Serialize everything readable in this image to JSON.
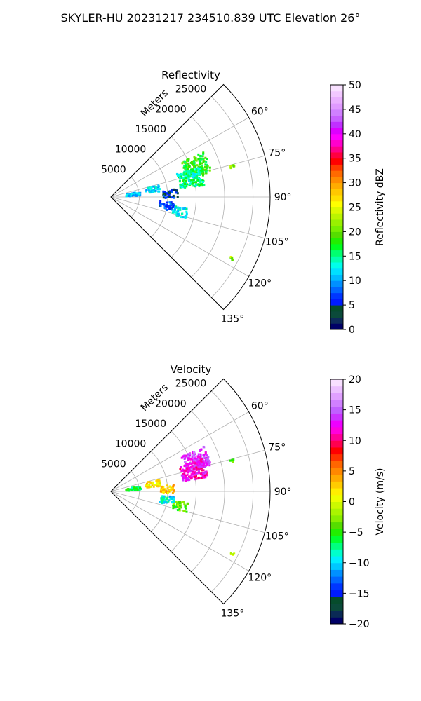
{
  "figure_title": "SKYLER-HU  20231217  234510.839 UTC Elevation 26°",
  "range_unit_label": "Meters",
  "chart_data": [
    {
      "type": "polar-sector",
      "title": "Reflectivity",
      "theta_range_deg": [
        45,
        135
      ],
      "r_max_m": 28000,
      "radial_ticks": [
        5000,
        10000,
        15000,
        20000,
        25000
      ],
      "angle_ticks_deg": [
        60,
        75,
        90,
        105,
        120,
        135
      ],
      "colorbar": {
        "label": "Reflectivity dBZ",
        "min": 0,
        "max": 50,
        "ticks": [
          0,
          5,
          10,
          15,
          20,
          25,
          30,
          35,
          40,
          45,
          50
        ]
      },
      "echo_clusters": [
        {
          "azimuth_deg": 70,
          "range_m": 16000,
          "value": 18
        },
        {
          "azimuth_deg": 77,
          "range_m": 14500,
          "value": 15
        },
        {
          "azimuth_deg": 80,
          "range_m": 7500,
          "value": 12
        },
        {
          "azimuth_deg": 84,
          "range_m": 4000,
          "value": 11
        },
        {
          "azimuth_deg": 87,
          "range_m": 10500,
          "value": 5
        },
        {
          "azimuth_deg": 99,
          "range_m": 10000,
          "value": 7
        },
        {
          "azimuth_deg": 102,
          "range_m": 12500,
          "value": 13
        },
        {
          "azimuth_deg": 76,
          "range_m": 22000,
          "value": 21
        },
        {
          "azimuth_deg": 117,
          "range_m": 24000,
          "value": 22
        }
      ]
    },
    {
      "type": "polar-sector",
      "title": "Velocity",
      "theta_range_deg": [
        45,
        135
      ],
      "r_max_m": 28000,
      "radial_ticks": [
        5000,
        10000,
        15000,
        20000,
        25000
      ],
      "angle_ticks_deg": [
        60,
        75,
        90,
        105,
        120,
        135
      ],
      "colorbar": {
        "label": "Velocity (m/s)",
        "min": -20,
        "max": 20,
        "ticks": [
          -20,
          -15,
          -10,
          -5,
          0,
          5,
          10,
          15,
          20
        ]
      },
      "echo_clusters": [
        {
          "azimuth_deg": 70,
          "range_m": 16000,
          "value": 14
        },
        {
          "azimuth_deg": 76,
          "range_m": 15000,
          "value": 12
        },
        {
          "azimuth_deg": 80,
          "range_m": 7500,
          "value": 2
        },
        {
          "azimuth_deg": 84,
          "range_m": 4000,
          "value": -6
        },
        {
          "azimuth_deg": 88,
          "range_m": 10000,
          "value": 3
        },
        {
          "azimuth_deg": 99,
          "range_m": 10000,
          "value": -9
        },
        {
          "azimuth_deg": 102,
          "range_m": 12500,
          "value": -4
        },
        {
          "azimuth_deg": 76,
          "range_m": 22000,
          "value": -4
        },
        {
          "azimuth_deg": 117,
          "range_m": 24000,
          "value": 0
        }
      ]
    }
  ]
}
